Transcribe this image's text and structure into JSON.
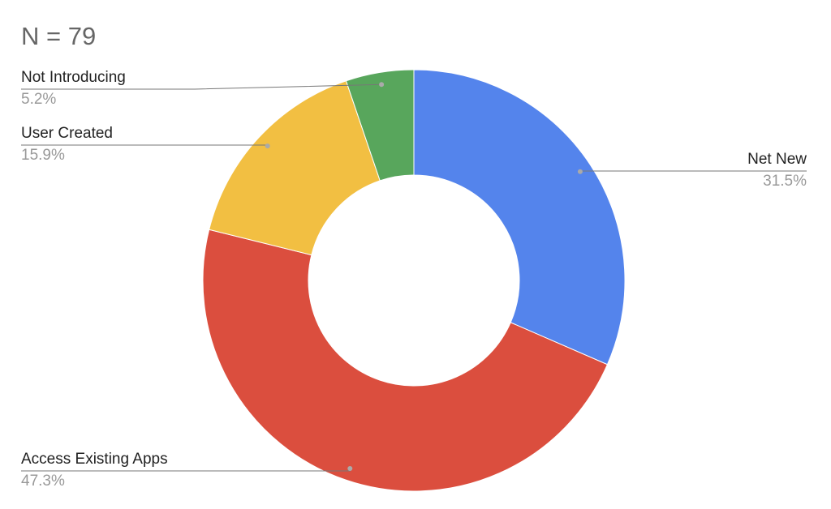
{
  "chart_data": {
    "type": "donut",
    "title": "N = 79",
    "categories": [
      "Net New",
      "Access Existing Apps",
      "User Created",
      "Not Introducing"
    ],
    "values": [
      31.5,
      47.3,
      15.9,
      5.2
    ],
    "value_labels": [
      "31.5%",
      "47.3%",
      "15.9%",
      "5.2%"
    ],
    "colors": [
      "#5484ec",
      "#db4e3e",
      "#f2bf42",
      "#58a65c"
    ]
  }
}
